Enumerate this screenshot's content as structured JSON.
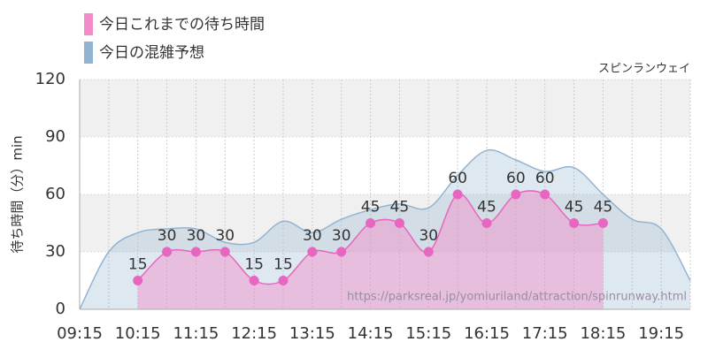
{
  "chart_data": {
    "type": "area",
    "legend": [
      "今日これまでの待ち時間",
      "今日の混雑予想"
    ],
    "subtitle": "スピンランウェイ",
    "y_label": "待ち時間（分）min",
    "annotation": "https://parksreal.jp/yomiuriland/attraction/spinrunway.html",
    "categories": [
      "09:15",
      null,
      "10:15",
      null,
      "11:15",
      null,
      "12:15",
      null,
      "13:15",
      null,
      "14:15",
      null,
      "15:15",
      null,
      "16:15",
      null,
      "17:15",
      null,
      "18:15",
      null,
      "19:15",
      null
    ],
    "series": [
      {
        "name": "今日これまでの待ち時間",
        "color": "#f28bc8",
        "point_color": "#e866c0",
        "values": [
          null,
          null,
          15,
          30,
          30,
          30,
          15,
          15,
          30,
          30,
          45,
          45,
          30,
          60,
          45,
          60,
          60,
          45,
          45,
          null,
          null,
          null
        ]
      },
      {
        "name": "今日の混雑予想",
        "color": "#93b4d1",
        "values": [
          0,
          30,
          40,
          42,
          42,
          35,
          35,
          46,
          40,
          47,
          52,
          55,
          53,
          70,
          83,
          78,
          72,
          74,
          60,
          47,
          42,
          15
        ]
      }
    ],
    "ylim": [
      0,
      120
    ],
    "yticks": [
      0,
      30,
      60,
      90,
      120
    ],
    "grid": true
  }
}
